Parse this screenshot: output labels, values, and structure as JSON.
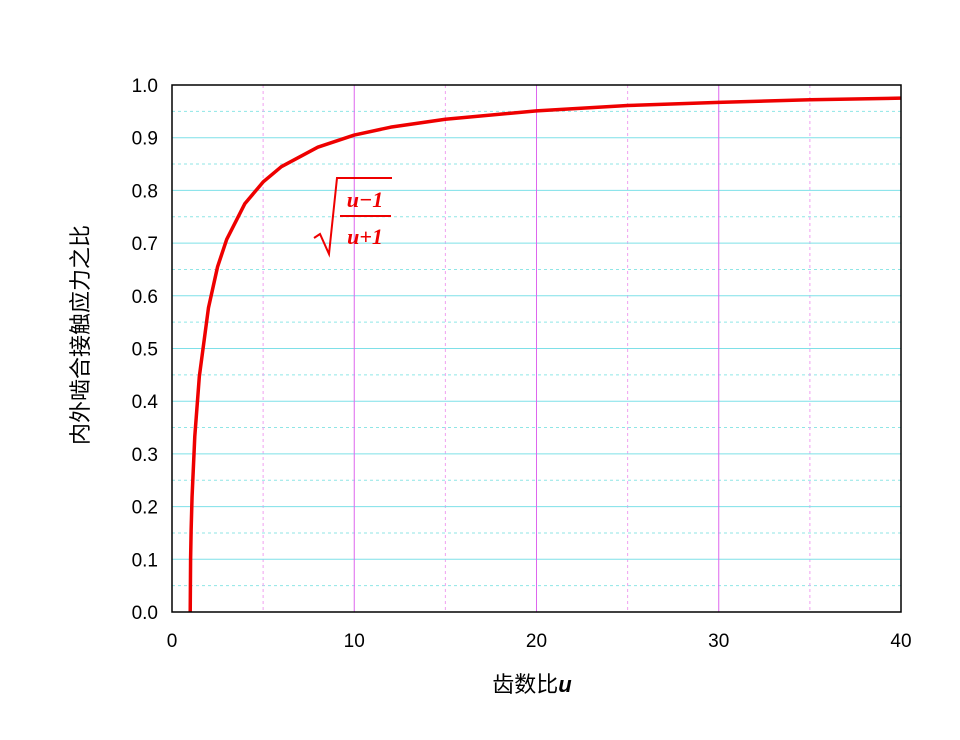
{
  "chart_data": {
    "type": "line",
    "x_label": {
      "text": "齿数比",
      "variable": "u"
    },
    "y_label": "内外啮合接触应力之比",
    "annotation": {
      "numerator": "u−1",
      "denominator": "u+1"
    },
    "x": [
      1,
      1.02,
      1.05,
      1.1,
      1.25,
      1.5,
      2,
      2.5,
      3,
      4,
      5,
      6,
      8,
      10,
      12,
      15,
      20,
      25,
      30,
      35,
      40
    ],
    "series": [
      {
        "color": "#ee0000",
        "values": [
          0,
          0.0995,
          0.156,
          0.218,
          0.333,
          0.447,
          0.577,
          0.655,
          0.707,
          0.775,
          0.816,
          0.845,
          0.882,
          0.905,
          0.92,
          0.935,
          0.951,
          0.961,
          0.967,
          0.972,
          0.975
        ]
      }
    ],
    "xlim": [
      0,
      40
    ],
    "xticks": [
      0,
      10,
      20,
      30,
      40
    ],
    "xminorticks": [
      5,
      15,
      25,
      35
    ],
    "ylim": [
      0,
      1
    ],
    "yticks": [
      {
        "value": 0,
        "label": "0.0"
      },
      {
        "value": 0.1,
        "label": "0.1"
      },
      {
        "value": 0.2,
        "label": "0.2"
      },
      {
        "value": 0.3,
        "label": "0.3"
      },
      {
        "value": 0.4,
        "label": "0.4"
      },
      {
        "value": 0.5,
        "label": "0.5"
      },
      {
        "value": 0.6,
        "label": "0.6"
      },
      {
        "value": 0.7,
        "label": "0.7"
      },
      {
        "value": 0.8,
        "label": "0.8"
      },
      {
        "value": 0.9,
        "label": "0.9"
      },
      {
        "value": 1,
        "label": "1.0"
      }
    ],
    "yminorticks": [
      0.05,
      0.15,
      0.25,
      0.35,
      0.45,
      0.55,
      0.65,
      0.75,
      0.85,
      0.95
    ],
    "grid": true
  }
}
